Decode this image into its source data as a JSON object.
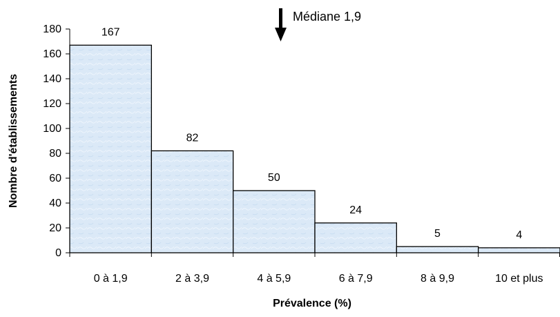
{
  "chart_data": {
    "type": "bar",
    "title": "",
    "xlabel": "Prévalence (%)",
    "ylabel": "Nombre d'établissements",
    "categories": [
      "0 à 1,9",
      "2 à 3,9",
      "4 à 5,9",
      "6 à 7,9",
      "8 à 9,9",
      "10 et plus"
    ],
    "values": [
      167,
      82,
      50,
      24,
      5,
      4
    ],
    "data_labels": [
      "167",
      "82",
      "50",
      "24",
      "5",
      "4"
    ],
    "ylim": [
      0,
      180
    ],
    "yticks": [
      0,
      20,
      40,
      60,
      80,
      100,
      120,
      140,
      160,
      180
    ],
    "grid": false,
    "legend": "none",
    "bar_fill": "#dbe9f7",
    "bar_stroke": "#000000",
    "annotation": {
      "text": "Médiane 1,9",
      "at_value": 1.9,
      "icon": "down-arrow-icon"
    }
  }
}
